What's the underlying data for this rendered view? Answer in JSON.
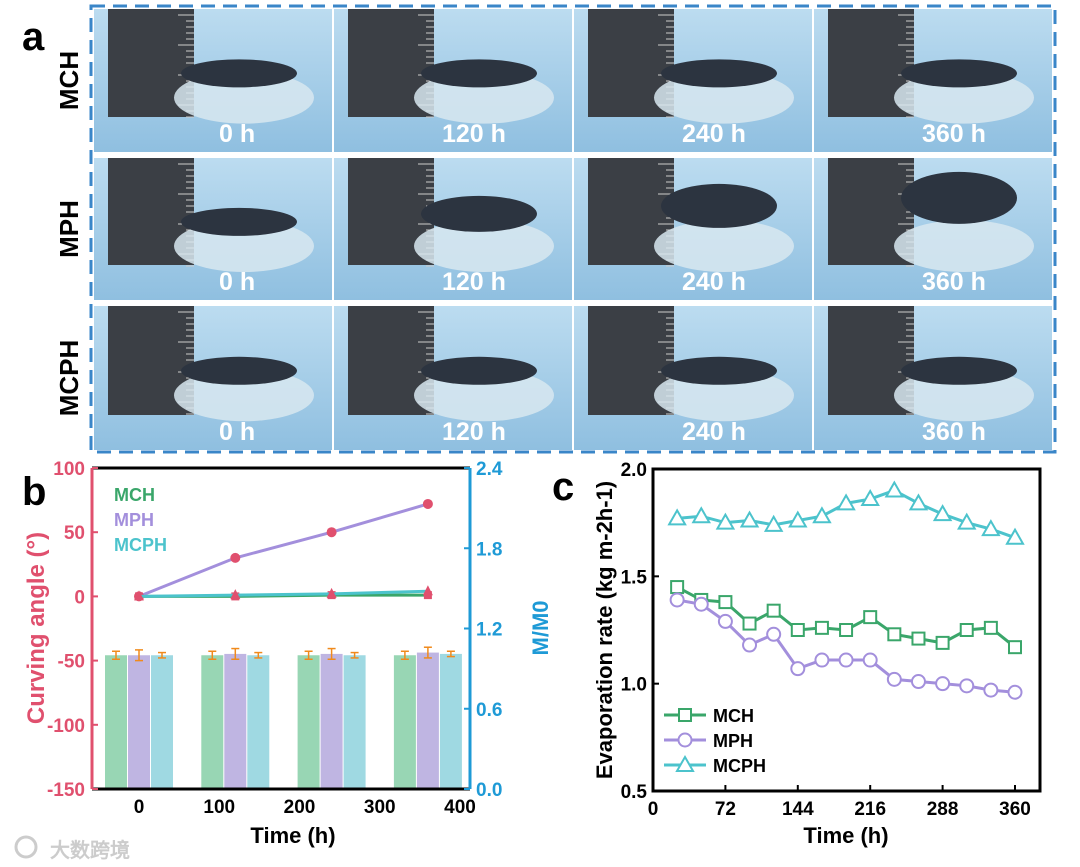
{
  "panel_a": {
    "label": "a",
    "rows": [
      "MCH",
      "MPH",
      "MCPH"
    ],
    "times": [
      "0 h",
      "120 h",
      "240 h",
      "360 h"
    ],
    "colors": {
      "border": "#3a86c8",
      "bg": "#a9cfe8"
    }
  },
  "watermark": "大数跨境",
  "chart_data": [
    {
      "panel": "b",
      "type": "bar+line",
      "xlabel": "Time (h)",
      "ylabel_left": "Curving angle (°)",
      "ylabel_right": "M/M0",
      "xlim": [
        -60,
        420
      ],
      "xticks": [
        "0",
        "100",
        "200",
        "300",
        "400"
      ],
      "ylim_left": [
        -150,
        100
      ],
      "yticks_left": [
        "100",
        "50",
        "0",
        "-50",
        "-100",
        "-150"
      ],
      "ylim_right": [
        0,
        2.4
      ],
      "yticks_right": [
        "2.4",
        "1.8",
        "1.2",
        "0.6",
        "0.0"
      ],
      "x": [
        0,
        120,
        240,
        360
      ],
      "legend": [
        "MCH",
        "MPH",
        "MCPH"
      ],
      "legend_position": "top-left",
      "series_lines": [
        {
          "name": "MCH",
          "values": [
            0,
            0,
            1,
            1
          ],
          "color": "#3aa66a"
        },
        {
          "name": "MPH",
          "values": [
            0,
            30,
            50,
            72
          ],
          "color": "#a38fdc"
        },
        {
          "name": "MCPH",
          "values": [
            0,
            1,
            2,
            4
          ],
          "color": "#4cc3cc"
        }
      ],
      "series_bars": [
        {
          "name": "MCH",
          "values": [
            1.0,
            1.0,
            1.0,
            1.0
          ],
          "errors": [
            0.03,
            0.03,
            0.03,
            0.03
          ],
          "color": "#98d6b4"
        },
        {
          "name": "MPH",
          "values": [
            1.0,
            1.01,
            1.01,
            1.02
          ],
          "errors": [
            0.04,
            0.04,
            0.04,
            0.04
          ],
          "color": "#bfb5e2"
        },
        {
          "name": "MCPH",
          "values": [
            1.0,
            1.0,
            1.0,
            1.01
          ],
          "errors": [
            0.02,
            0.02,
            0.02,
            0.02
          ],
          "color": "#9fd9e2"
        }
      ],
      "colors": {
        "left_axis": "#e0506e",
        "right_axis": "#1e9ad6",
        "marker": "#e0506e",
        "error": "#f08a1c"
      }
    },
    {
      "panel": "c",
      "type": "line",
      "xlabel": "Time (h)",
      "ylabel": "Evaporation rate (kg m-2h-1)",
      "xlim": [
        0,
        384
      ],
      "xticks": [
        "0",
        "72",
        "144",
        "216",
        "288",
        "360"
      ],
      "ylim": [
        0.5,
        2.0
      ],
      "yticks": [
        "2.0",
        "1.5",
        "1.0",
        "0.5"
      ],
      "x": [
        24,
        48,
        72,
        96,
        120,
        144,
        168,
        192,
        216,
        240,
        264,
        288,
        312,
        336,
        360
      ],
      "legend_position": "bottom-left",
      "series": [
        {
          "name": "MCH",
          "marker": "square",
          "color": "#3aa66a",
          "values": [
            1.45,
            1.39,
            1.38,
            1.28,
            1.34,
            1.25,
            1.26,
            1.25,
            1.31,
            1.23,
            1.21,
            1.19,
            1.25,
            1.26,
            1.17
          ]
        },
        {
          "name": "MPH",
          "marker": "circle",
          "color": "#a38fdc",
          "values": [
            1.39,
            1.37,
            1.29,
            1.18,
            1.23,
            1.07,
            1.11,
            1.11,
            1.11,
            1.02,
            1.01,
            1.0,
            0.99,
            0.97,
            0.96
          ]
        },
        {
          "name": "MCPH",
          "marker": "triangle",
          "color": "#4cc3cc",
          "values": [
            1.77,
            1.78,
            1.75,
            1.76,
            1.74,
            1.76,
            1.78,
            1.84,
            1.86,
            1.9,
            1.84,
            1.79,
            1.75,
            1.72,
            1.68
          ]
        }
      ]
    }
  ]
}
